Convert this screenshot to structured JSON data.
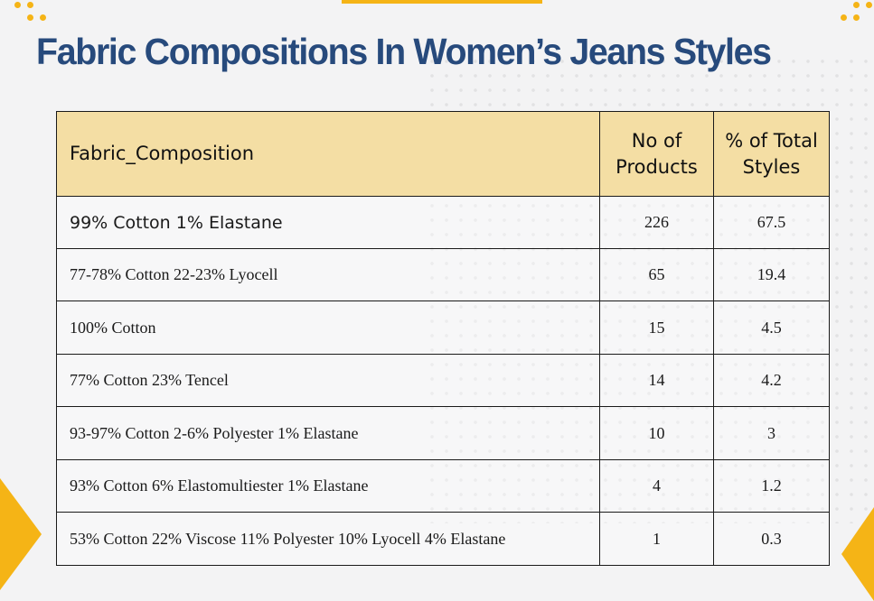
{
  "title": "Fabric Compositions In Women’s Jeans Styles",
  "colors": {
    "accent": "#f5b416",
    "title": "#274a7c",
    "header_bg": "#f4dea4"
  },
  "table": {
    "headers": {
      "composition": "Fabric_Composition",
      "products_line1": "No of",
      "products_line2": "Products",
      "pct_line1": "% of Total",
      "pct_line2": "Styles"
    },
    "rows": [
      {
        "composition": "99% Cotton 1% Elastane",
        "products": "226",
        "pct": "67.5"
      },
      {
        "composition": "77-78% Cotton 22-23% Lyocell",
        "products": "65",
        "pct": "19.4"
      },
      {
        "composition": "100% Cotton",
        "products": "15",
        "pct": "4.5"
      },
      {
        "composition": "77% Cotton 23% Tencel",
        "products": "14",
        "pct": "4.2"
      },
      {
        "composition": "93-97% Cotton 2-6% Polyester 1% Elastane",
        "products": "10",
        "pct": "3"
      },
      {
        "composition": "93% Cotton 6% Elastomultiester 1% Elastane",
        "products": "4",
        "pct": "1.2"
      },
      {
        "composition": "53% Cotton 22% Viscose 11% Polyester 10% Lyocell 4% Elastane",
        "products": "1",
        "pct": "0.3"
      }
    ]
  }
}
